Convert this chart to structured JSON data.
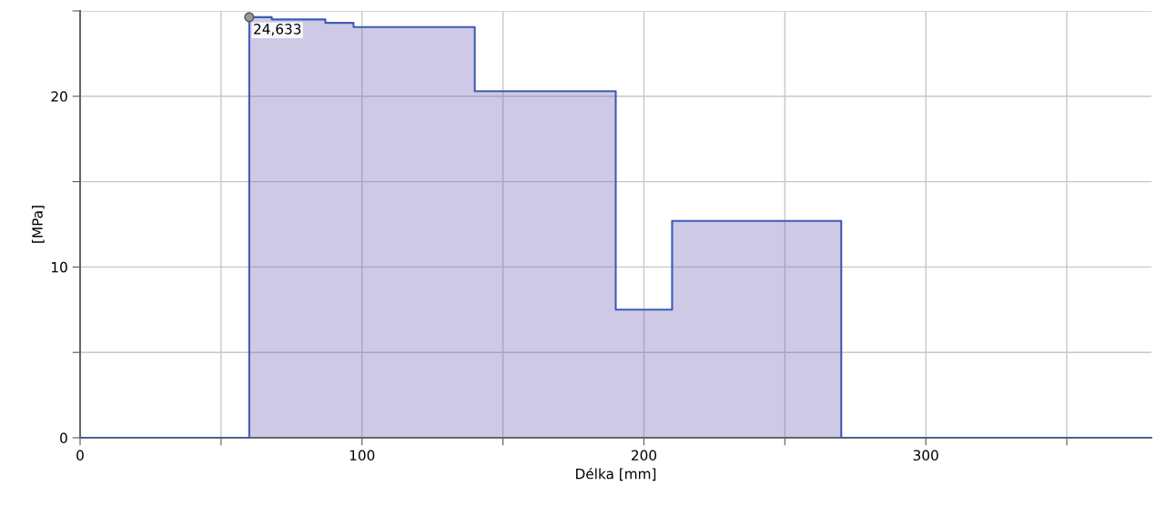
{
  "chart_data": {
    "type": "step",
    "xlabel": "Délka [mm]",
    "ylabel": "[MPa]",
    "x": [
      0,
      60,
      68,
      87,
      97,
      140,
      190,
      210,
      270,
      380
    ],
    "series": [
      {
        "color": "#3c5bb5",
        "values": [
          0,
          24.633,
          24.5,
          24.3,
          24.05,
          20.3,
          7.5,
          12.7,
          0,
          0
        ]
      }
    ],
    "annotations": [
      {
        "text": "24,633",
        "x": 60,
        "y": 24.633
      }
    ],
    "xlim": [
      0,
      380
    ],
    "ylim": [
      0,
      25
    ],
    "xticks": [
      0,
      {
        "value": 50,
        "label": null
      },
      100,
      {
        "value": 150,
        "label": null
      },
      200,
      {
        "value": 250,
        "label": null
      },
      300,
      {
        "value": 350,
        "label": null
      }
    ],
    "yticks": [
      0,
      {
        "value": 5,
        "label": null
      },
      10,
      {
        "value": 15,
        "label": null
      },
      20,
      {
        "value": 25,
        "label": null
      }
    ],
    "grid": true
  }
}
